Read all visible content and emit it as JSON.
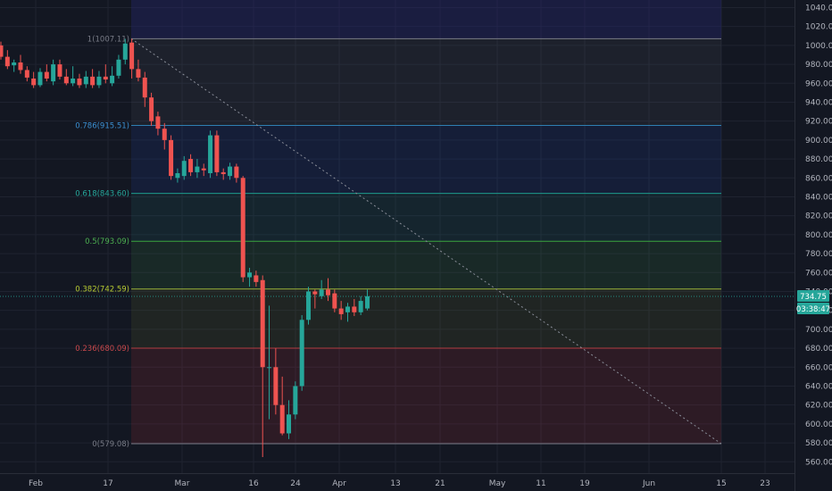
{
  "colors": {
    "background": "#131722",
    "grid": "#1f2330",
    "axis_text": "#b2b5be",
    "up": "#26a69a",
    "down": "#ef5350",
    "trendline": "#8a8e99",
    "price_badge": "#26a69a"
  },
  "price_axis": {
    "ticks": [
      "1040.00",
      "1020.00",
      "1000.00",
      "980.00",
      "960.00",
      "940.00",
      "920.00",
      "900.00",
      "880.00",
      "860.00",
      "840.00",
      "820.00",
      "800.00",
      "780.00",
      "760.00",
      "740.00",
      "720.00",
      "700.00",
      "680.00",
      "660.00",
      "640.00",
      "620.00",
      "600.00",
      "580.00",
      "560.00"
    ],
    "last_price_label": "734.75",
    "countdown_label": "03:38:47"
  },
  "time_axis": {
    "labels": [
      "Feb",
      "17",
      "Mar",
      "16",
      "24",
      "Apr",
      "13",
      "21",
      "May",
      "11",
      "19",
      "Jun",
      "15",
      "23"
    ]
  },
  "fib_levels": [
    {
      "label": "1(1007.11)",
      "value": 1007.11,
      "line": "#787b86",
      "text": "#787b86",
      "fill": "rgba(120,123,134,0.10)"
    },
    {
      "label": "0.786(915.51)",
      "value": 915.51,
      "line": "#2f7fb2",
      "text": "#3b8fd1",
      "fill": "rgba(41,98,255,0.10)"
    },
    {
      "label": "0.618(843.60)",
      "value": 843.6,
      "line": "#1e9b8c",
      "text": "#26a69a",
      "fill": "rgba(38,166,154,0.10)"
    },
    {
      "label": "0.5(793.09)",
      "value": 793.09,
      "line": "#3aa63f",
      "text": "#4caf50",
      "fill": "rgba(76,175,80,0.12)"
    },
    {
      "label": "0.382(742.59)",
      "value": 742.59,
      "line": "#9bb23a",
      "text": "#b5c932",
      "fill": "rgba(150,170,50,0.10)"
    },
    {
      "label": "0.236(680.09)",
      "value": 680.09,
      "line": "#b23c40",
      "text": "#c8484c",
      "fill": "rgba(242,54,69,0.12)"
    },
    {
      "label": "0(579.08)",
      "value": 579.08,
      "line": "#787b86",
      "text": "#787b86",
      "fill": "none"
    }
  ],
  "chart_data": {
    "type": "candlestick",
    "title": "",
    "ylim": [
      548,
      1048
    ],
    "candles": [
      {
        "o": 1000,
        "h": 1004,
        "l": 985,
        "c": 988
      },
      {
        "o": 988,
        "h": 995,
        "l": 975,
        "c": 978
      },
      {
        "o": 979,
        "h": 985,
        "l": 972,
        "c": 982
      },
      {
        "o": 982,
        "h": 990,
        "l": 970,
        "c": 974
      },
      {
        "o": 974,
        "h": 978,
        "l": 962,
        "c": 966
      },
      {
        "o": 965,
        "h": 972,
        "l": 955,
        "c": 958
      },
      {
        "o": 958,
        "h": 976,
        "l": 956,
        "c": 972
      },
      {
        "o": 972,
        "h": 980,
        "l": 962,
        "c": 965
      },
      {
        "o": 962,
        "h": 985,
        "l": 958,
        "c": 980
      },
      {
        "o": 980,
        "h": 985,
        "l": 964,
        "c": 967
      },
      {
        "o": 967,
        "h": 975,
        "l": 958,
        "c": 960
      },
      {
        "o": 960,
        "h": 978,
        "l": 957,
        "c": 965
      },
      {
        "o": 965,
        "h": 970,
        "l": 955,
        "c": 958
      },
      {
        "o": 959,
        "h": 973,
        "l": 955,
        "c": 967
      },
      {
        "o": 967,
        "h": 975,
        "l": 955,
        "c": 958
      },
      {
        "o": 958,
        "h": 973,
        "l": 955,
        "c": 967
      },
      {
        "o": 967,
        "h": 980,
        "l": 960,
        "c": 964
      },
      {
        "o": 960,
        "h": 978,
        "l": 957,
        "c": 968
      },
      {
        "o": 968,
        "h": 990,
        "l": 965,
        "c": 985
      },
      {
        "o": 985,
        "h": 1007,
        "l": 980,
        "c": 1002
      },
      {
        "o": 1003,
        "h": 1007,
        "l": 965,
        "c": 975
      },
      {
        "o": 975,
        "h": 985,
        "l": 962,
        "c": 966
      },
      {
        "o": 966,
        "h": 972,
        "l": 935,
        "c": 945
      },
      {
        "o": 945,
        "h": 950,
        "l": 915,
        "c": 920
      },
      {
        "o": 925,
        "h": 930,
        "l": 905,
        "c": 912
      },
      {
        "o": 912,
        "h": 918,
        "l": 890,
        "c": 900
      },
      {
        "o": 900,
        "h": 905,
        "l": 858,
        "c": 862
      },
      {
        "o": 860,
        "h": 870,
        "l": 855,
        "c": 865
      },
      {
        "o": 862,
        "h": 883,
        "l": 858,
        "c": 878
      },
      {
        "o": 880,
        "h": 885,
        "l": 862,
        "c": 866
      },
      {
        "o": 866,
        "h": 880,
        "l": 860,
        "c": 872
      },
      {
        "o": 870,
        "h": 875,
        "l": 862,
        "c": 868
      },
      {
        "o": 865,
        "h": 910,
        "l": 860,
        "c": 905
      },
      {
        "o": 905,
        "h": 910,
        "l": 862,
        "c": 866
      },
      {
        "o": 866,
        "h": 870,
        "l": 858,
        "c": 864
      },
      {
        "o": 862,
        "h": 876,
        "l": 858,
        "c": 872
      },
      {
        "o": 872,
        "h": 875,
        "l": 855,
        "c": 860
      },
      {
        "o": 860,
        "h": 862,
        "l": 750,
        "c": 755
      },
      {
        "o": 755,
        "h": 765,
        "l": 745,
        "c": 760
      },
      {
        "o": 757,
        "h": 762,
        "l": 745,
        "c": 750
      },
      {
        "o": 752,
        "h": 757,
        "l": 565,
        "c": 660
      },
      {
        "o": 660,
        "h": 725,
        "l": 605,
        "c": 660
      },
      {
        "o": 660,
        "h": 680,
        "l": 610,
        "c": 620
      },
      {
        "o": 620,
        "h": 650,
        "l": 588,
        "c": 590
      },
      {
        "o": 590,
        "h": 625,
        "l": 584,
        "c": 610
      },
      {
        "o": 610,
        "h": 645,
        "l": 605,
        "c": 640
      },
      {
        "o": 640,
        "h": 715,
        "l": 635,
        "c": 710
      },
      {
        "o": 710,
        "h": 745,
        "l": 705,
        "c": 740
      },
      {
        "o": 740,
        "h": 742,
        "l": 722,
        "c": 737
      },
      {
        "o": 735,
        "h": 752,
        "l": 732,
        "c": 742
      },
      {
        "o": 742,
        "h": 754,
        "l": 730,
        "c": 736
      },
      {
        "o": 738,
        "h": 742,
        "l": 718,
        "c": 722
      },
      {
        "o": 722,
        "h": 730,
        "l": 710,
        "c": 716
      },
      {
        "o": 718,
        "h": 728,
        "l": 708,
        "c": 724
      },
      {
        "o": 724,
        "h": 732,
        "l": 714,
        "c": 718
      },
      {
        "o": 718,
        "h": 735,
        "l": 715,
        "c": 730
      },
      {
        "o": 722,
        "h": 742,
        "l": 720,
        "c": 735
      }
    ],
    "last_price": 734.75
  }
}
